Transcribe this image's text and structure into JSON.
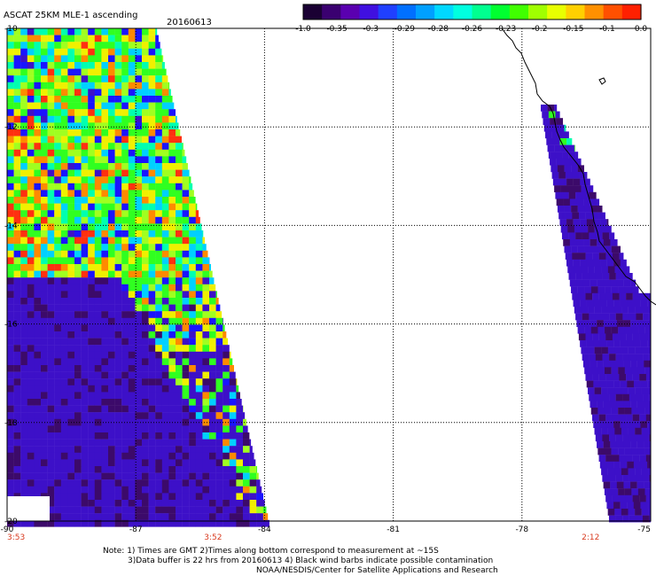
{
  "title": "ASCAT 25KM MLE-1 ascending",
  "date": "20160613",
  "colorbar": {
    "tick_labels": [
      "-1.0",
      "-0.35",
      "-0.3",
      "-0.29",
      "-0.28",
      "-0.26",
      "-0.23",
      "-0.2",
      "-0.15",
      "-0.1",
      "0.0"
    ],
    "colors": [
      "#1a0033",
      "#3a0070",
      "#5a00b0",
      "#4010e0",
      "#2040ff",
      "#0070ff",
      "#00a0ff",
      "#00d8ff",
      "#00ffe0",
      "#00ff90",
      "#00ff30",
      "#40ff00",
      "#a0ff00",
      "#e8ff00",
      "#ffd000",
      "#ff9000",
      "#ff5000",
      "#ff2000"
    ]
  },
  "map": {
    "lon_range": [
      -90,
      -75
    ],
    "lat_range": [
      -20,
      -10
    ],
    "lon_labels": [
      "-90",
      "-87",
      "-84",
      "-81",
      "-78",
      "-75"
    ],
    "lat_labels": [
      "-10",
      "-12",
      "-14",
      "-16",
      "-18",
      "-20"
    ],
    "pass_times": [
      {
        "label": "3:53",
        "lon": -90
      },
      {
        "label": "3:52",
        "lon": -85.2
      },
      {
        "label": "2:12",
        "lon": -76.4
      }
    ],
    "swath_colors": {
      "purple": "#3d10c8",
      "dark": "#3c0a6a",
      "blue": "#1a14ff",
      "cyan": "#00d0ff",
      "teal": "#00ffb0",
      "green": "#30ff20",
      "lime": "#a0ff20",
      "yellow": "#f0f000",
      "orange": "#ff8a00",
      "red": "#ff3010"
    }
  },
  "notes": {
    "line1": "Note: 1) Times are GMT 2)Times along bottom correspond to measurement at ~15S",
    "line2": "3)Data buffer is 22 hrs from 20160613 4) Black wind barbs indicate possible contamination",
    "line3": "NOAA/NESDIS/Center for Satellite Applications and Research"
  }
}
